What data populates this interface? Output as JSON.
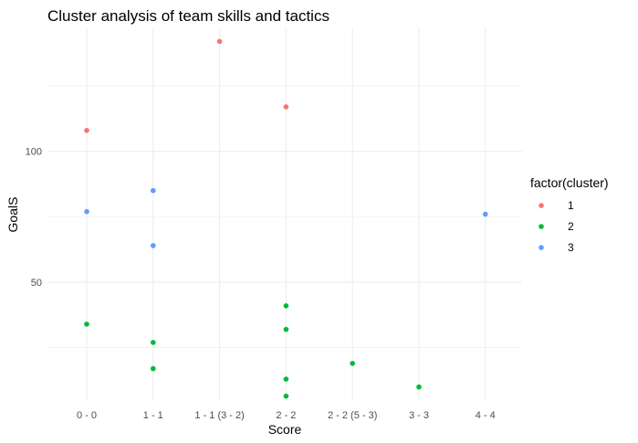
{
  "chart_data": {
    "type": "scatter",
    "title": "Cluster analysis of team skills and tactics",
    "xlabel": "Score",
    "ylabel": "GoalS",
    "categories": [
      "0 - 0",
      "1 - 1",
      "1 - 1 (3 - 2)",
      "2 - 2",
      "2 - 2 (5 - 3)",
      "3 - 3",
      "4 - 4"
    ],
    "y_ticks": [
      50,
      100
    ],
    "ylim": [
      5,
      147
    ],
    "grid": true,
    "legend": {
      "title": "factor(cluster)",
      "position": "right"
    },
    "series": [
      {
        "name": "1",
        "color": "#F8766D",
        "points": [
          {
            "x": "0 - 0",
            "y": 108
          },
          {
            "x": "1 - 1 (3 - 2)",
            "y": 142
          },
          {
            "x": "2 - 2",
            "y": 117
          }
        ]
      },
      {
        "name": "2",
        "color": "#00BA38",
        "points": [
          {
            "x": "0 - 0",
            "y": 34
          },
          {
            "x": "1 - 1",
            "y": 27
          },
          {
            "x": "1 - 1",
            "y": 17
          },
          {
            "x": "2 - 2",
            "y": 41
          },
          {
            "x": "2 - 2",
            "y": 32
          },
          {
            "x": "2 - 2",
            "y": 13
          },
          {
            "x": "2 - 2",
            "y": 6.5
          },
          {
            "x": "2 - 2 (5 - 3)",
            "y": 19
          },
          {
            "x": "3 - 3",
            "y": 10
          }
        ]
      },
      {
        "name": "3",
        "color": "#619CFF",
        "points": [
          {
            "x": "0 - 0",
            "y": 77
          },
          {
            "x": "1 - 1",
            "y": 85
          },
          {
            "x": "1 - 1",
            "y": 64
          },
          {
            "x": "4 - 4",
            "y": 76
          }
        ]
      }
    ]
  }
}
